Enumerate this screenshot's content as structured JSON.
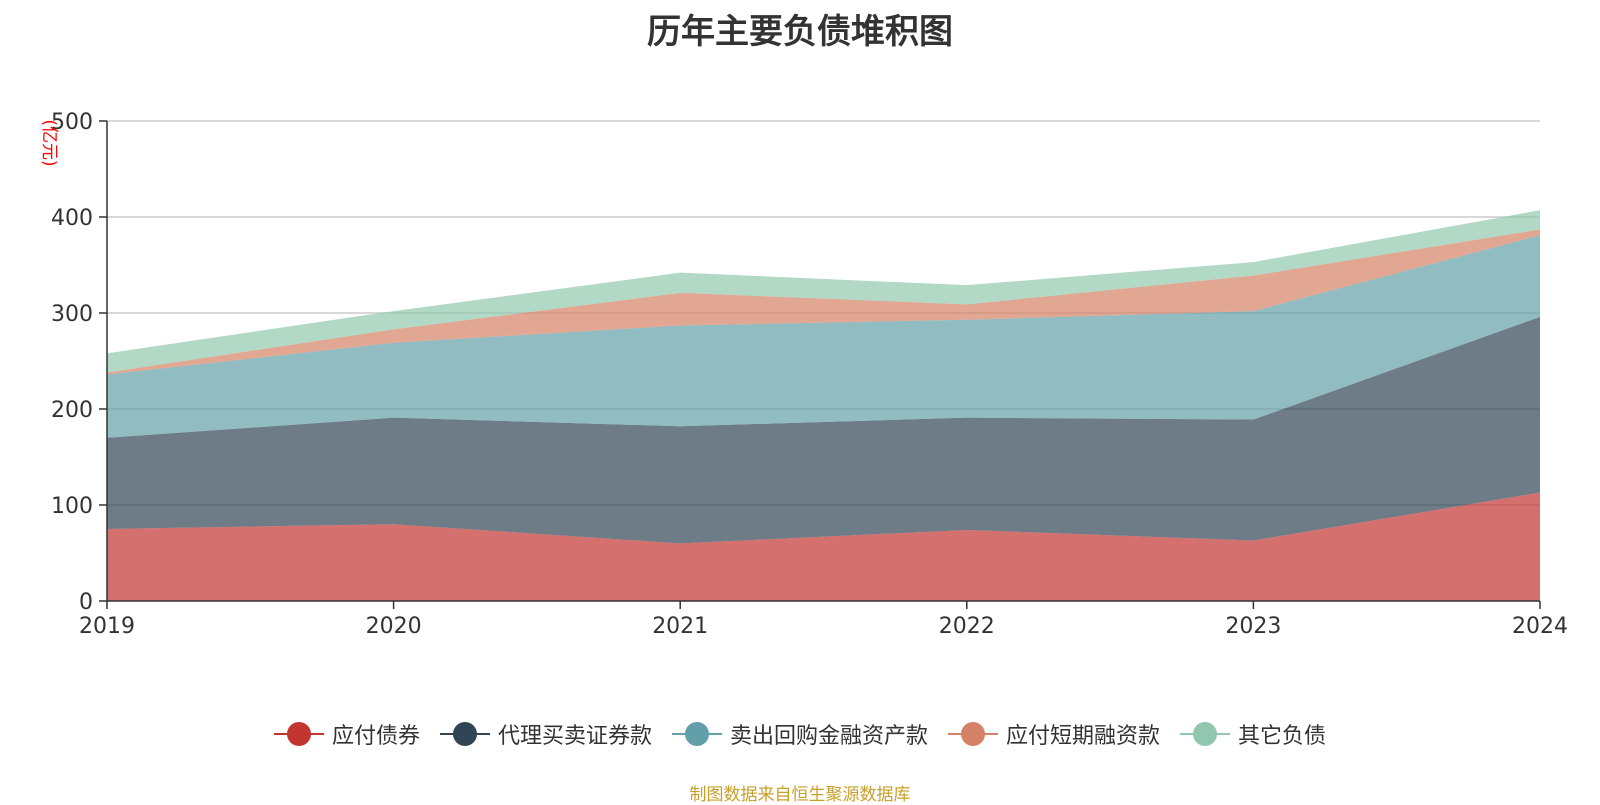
{
  "chart_data": {
    "type": "area",
    "stacked": true,
    "title": "历年主要负债堆积图",
    "unit_label": "(亿元)",
    "x": [
      "2019",
      "2020",
      "2021",
      "2022",
      "2023",
      "2024"
    ],
    "ylim": [
      0,
      500
    ],
    "yticks": [
      0,
      100,
      200,
      300,
      400,
      500
    ],
    "grid": true,
    "legend_position": "bottom",
    "series": [
      {
        "name": "应付债券",
        "color": "#c23531",
        "values": [
          75,
          80,
          60,
          74,
          63,
          113
        ]
      },
      {
        "name": "代理买卖证券款",
        "color": "#2f4554",
        "values": [
          95,
          111,
          122,
          117,
          126,
          183
        ]
      },
      {
        "name": "卖出回购金融资产款",
        "color": "#61a0a8",
        "values": [
          66,
          78,
          105,
          102,
          113,
          85
        ]
      },
      {
        "name": "应付短期融资款",
        "color": "#d48265",
        "values": [
          2,
          14,
          34,
          16,
          37,
          6
        ]
      },
      {
        "name": "其它负债",
        "color": "#91c7ae",
        "values": [
          20,
          19,
          21,
          20,
          14,
          20
        ]
      }
    ]
  },
  "footer": {
    "source": "制图数据来自恒生聚源数据库"
  }
}
